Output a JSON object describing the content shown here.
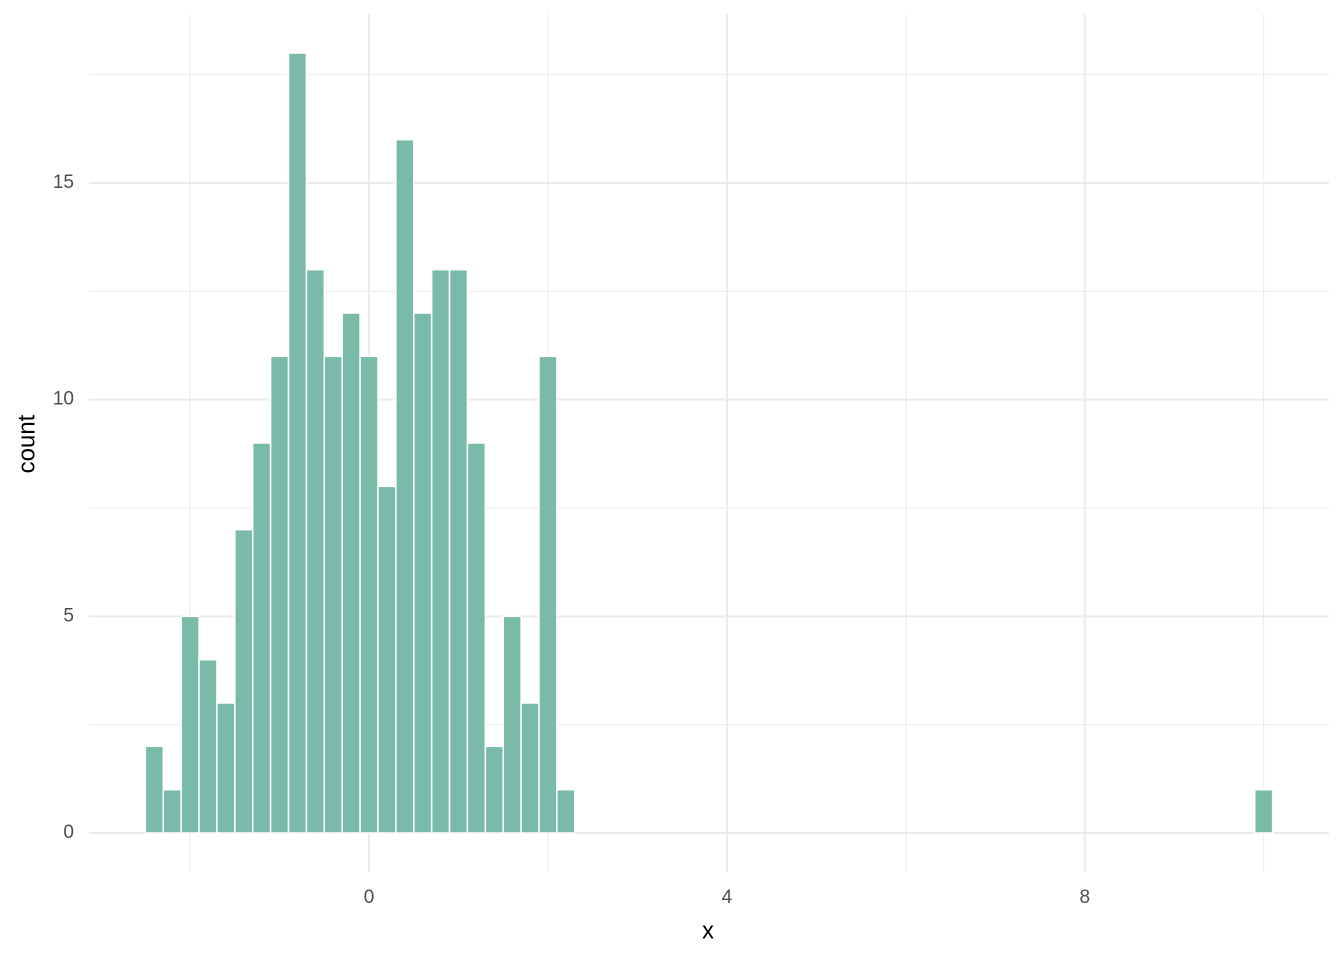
{
  "chart_data": {
    "type": "histogram",
    "x_label": "x",
    "y_label": "count",
    "bins": [
      -2.5,
      -2.3,
      -2.1,
      -1.9,
      -1.7,
      -1.5,
      -1.3,
      -1.1,
      -0.9,
      -0.7,
      -0.5,
      -0.3,
      -0.1,
      0.1,
      0.3,
      0.5,
      0.7,
      0.9,
      1.1,
      1.3,
      1.5,
      1.7,
      1.9,
      2.1,
      2.3,
      2.5,
      2.7,
      2.9,
      3.1,
      3.3,
      3.5,
      3.7,
      3.9,
      4.1,
      4.3,
      4.5,
      4.7,
      4.9,
      5.1,
      5.3,
      5.5,
      5.7,
      5.9,
      6.1,
      6.3,
      6.5,
      6.7,
      6.9,
      7.1,
      7.3,
      7.5,
      7.7,
      7.9,
      8.1,
      8.3,
      8.5,
      8.7,
      8.9,
      9.1,
      9.3,
      9.5,
      9.7,
      9.9,
      10.1
    ],
    "values": [
      2,
      1,
      5,
      4,
      3,
      7,
      9,
      11,
      18,
      13,
      11,
      12,
      11,
      8,
      16,
      12,
      13,
      13,
      9,
      2,
      5,
      3,
      11,
      1,
      0,
      0,
      0,
      0,
      0,
      0,
      0,
      0,
      0,
      0,
      0,
      0,
      0,
      0,
      0,
      0,
      0,
      0,
      0,
      0,
      0,
      0,
      0,
      0,
      0,
      0,
      0,
      0,
      0,
      0,
      0,
      0,
      0,
      0,
      0,
      0,
      0,
      0,
      1
    ],
    "color": "#7aba a9",
    "edge_color": "#ffffff",
    "xlim": [
      -3.13,
      10.73
    ],
    "ylim": [
      -0.9,
      18.9
    ],
    "xticks": [
      0,
      4,
      8
    ],
    "yticks": [
      0,
      5,
      10,
      15
    ],
    "grid": true,
    "minor_grid": true
  }
}
